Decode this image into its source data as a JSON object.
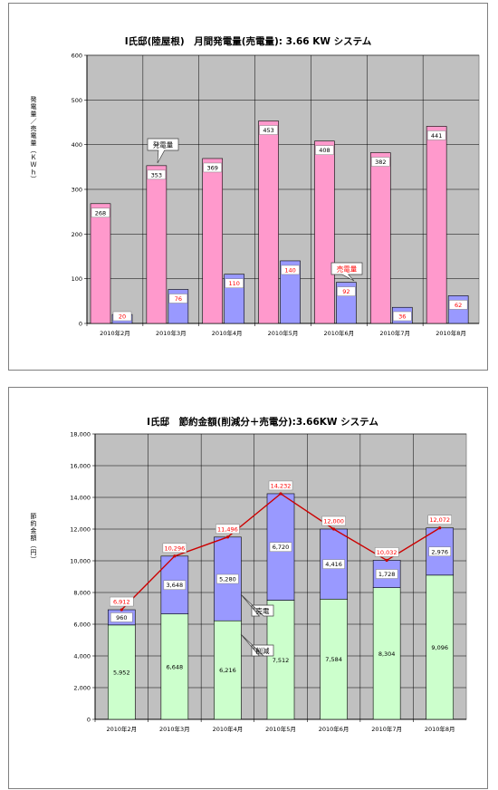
{
  "chart_data": [
    {
      "type": "bar",
      "title": "I氏邸(陸屋根)　月間発電量(売電量): 3.66 KW システム",
      "ylabel": "発電量／売電量（ＫＷｈ）",
      "categories": [
        "2010年2月",
        "2010年3月",
        "2010年4月",
        "2010年5月",
        "2010年6月",
        "2010年7月",
        "2010年8月"
      ],
      "ylim": [
        0,
        600
      ],
      "yticks": [
        "0",
        "100",
        "200",
        "300",
        "400",
        "500",
        "600"
      ],
      "series": [
        {
          "name": "発電量",
          "color": "#ff99cc",
          "values": [
            268,
            353,
            369,
            453,
            408,
            382,
            441
          ]
        },
        {
          "name": "売電量",
          "color": "#9999ff",
          "values": [
            20,
            76,
            110,
            140,
            92,
            36,
            62
          ]
        }
      ],
      "callouts": [
        "発電量",
        "売電量"
      ],
      "grid": true,
      "plot_background": "#c0c0c0"
    },
    {
      "type": "bar",
      "stacked": true,
      "title": "I氏邸　節約金額(削減分＋売電分):3.66KW システム",
      "ylabel": "節約金額（円）",
      "categories": [
        "2010年2月",
        "2010年3月",
        "2010年4月",
        "2010年5月",
        "2010年6月",
        "2010年7月",
        "2010年8月"
      ],
      "ylim": [
        0,
        18000
      ],
      "yticks": [
        "0",
        "2,000",
        "4,000",
        "6,000",
        "8,000",
        "10,000",
        "12,000",
        "14,000",
        "16,000",
        "18,000"
      ],
      "series": [
        {
          "name": "削減",
          "color": "#ccffcc",
          "values": [
            5952,
            6648,
            6216,
            7512,
            7584,
            8304,
            9096
          ],
          "labels": [
            "5,952",
            "6,648",
            "6,216",
            "7,512",
            "7,584",
            "8,304",
            "9,096"
          ]
        },
        {
          "name": "売電",
          "color": "#9999ff",
          "values": [
            960,
            3648,
            5280,
            6720,
            4416,
            1728,
            2976
          ],
          "labels": [
            "960",
            "3,648",
            "5,280",
            "6,720",
            "4,416",
            "1,728",
            "2,976"
          ]
        }
      ],
      "totals": [
        6912,
        10296,
        11496,
        14232,
        12000,
        10032,
        12072
      ],
      "total_labels": [
        "6,912",
        "10,296",
        "11,496",
        "14,232",
        "12,000",
        "10,032",
        "12,072"
      ],
      "line_color": "#cc0000",
      "callouts": [
        "売電",
        "削減"
      ],
      "grid": true,
      "plot_background": "#c0c0c0"
    }
  ]
}
